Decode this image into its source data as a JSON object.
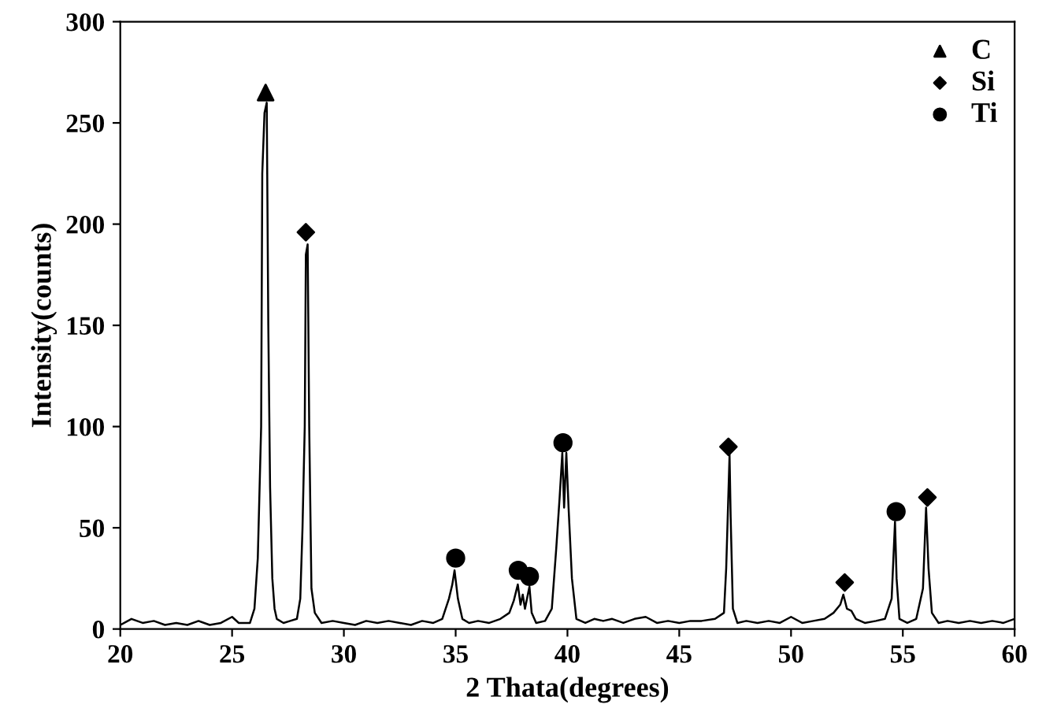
{
  "chart_data": {
    "type": "line",
    "xlabel": "2 Thata(degrees)",
    "ylabel": "Intensity(counts)",
    "xlim": [
      20,
      60
    ],
    "xticks": [
      20,
      25,
      30,
      35,
      40,
      45,
      50,
      55,
      60
    ],
    "ylim": [
      0,
      300
    ],
    "yticks": [
      0,
      50,
      100,
      150,
      200,
      250,
      300
    ],
    "grid": false,
    "legend": "top right",
    "series": [
      {
        "color": "#000000",
        "marker": "none",
        "x": [
          20,
          20.5,
          21,
          21.5,
          22,
          22.5,
          23,
          23.5,
          24,
          24.5,
          25,
          25.3,
          25.8,
          26.0,
          26.15,
          26.3,
          26.35,
          26.45,
          26.55,
          26.62,
          26.7,
          26.8,
          26.9,
          27.0,
          27.3,
          27.6,
          27.9,
          28.05,
          28.15,
          28.25,
          28.3,
          28.38,
          28.45,
          28.55,
          28.7,
          29,
          29.5,
          30,
          30.5,
          31,
          31.5,
          32,
          32.5,
          33,
          33.5,
          34,
          34.4,
          34.7,
          34.85,
          34.95,
          35.1,
          35.3,
          35.6,
          36,
          36.5,
          37,
          37.4,
          37.6,
          37.78,
          37.9,
          38.0,
          38.1,
          38.3,
          38.4,
          38.6,
          39.0,
          39.3,
          39.5,
          39.65,
          39.77,
          39.85,
          39.95,
          40.05,
          40.2,
          40.4,
          40.8,
          41.2,
          41.6,
          42,
          42.5,
          43,
          43.5,
          44,
          44.5,
          45,
          45.5,
          46,
          46.6,
          47.0,
          47.1,
          47.25,
          47.3,
          47.4,
          47.6,
          48,
          48.5,
          49,
          49.5,
          50,
          50.5,
          51,
          51.5,
          51.9,
          52.2,
          52.34,
          52.5,
          52.7,
          52.9,
          53.3,
          53.8,
          54.2,
          54.5,
          54.65,
          54.72,
          54.85,
          55.2,
          55.6,
          55.9,
          56.04,
          56.15,
          56.3,
          56.6,
          57,
          57.5,
          58,
          58.5,
          59,
          59.5,
          60
        ],
        "values": [
          2,
          5,
          3,
          4,
          2,
          3,
          2,
          4,
          2,
          3,
          6,
          3,
          3,
          10,
          35,
          100,
          225,
          255,
          260,
          150,
          70,
          25,
          10,
          5,
          3,
          4,
          5,
          15,
          50,
          100,
          185,
          190,
          100,
          20,
          8,
          3,
          4,
          3,
          2,
          4,
          3,
          4,
          3,
          2,
          4,
          3,
          5,
          15,
          22,
          29,
          15,
          5,
          3,
          4,
          3,
          5,
          8,
          14,
          22,
          12,
          17,
          10,
          21,
          8,
          3,
          4,
          10,
          40,
          65,
          87,
          60,
          87,
          60,
          25,
          5,
          3,
          5,
          4,
          5,
          3,
          5,
          6,
          3,
          4,
          3,
          4,
          4,
          5,
          8,
          30,
          86,
          55,
          10,
          3,
          4,
          3,
          4,
          3,
          6,
          3,
          4,
          5,
          8,
          12,
          17,
          10,
          9,
          5,
          3,
          4,
          5,
          15,
          53,
          25,
          5,
          3,
          5,
          20,
          60,
          30,
          8,
          3,
          4,
          3,
          4,
          3,
          4,
          3,
          5
        ]
      },
      {
        "type": "scatter",
        "name": "C",
        "color": "#000000",
        "marker": "triangle",
        "x": [
          26.5
        ],
        "values": [
          265
        ]
      },
      {
        "type": "scatter",
        "name": "Si",
        "color": "#000000",
        "marker": "diamond",
        "x": [
          28.3,
          47.2,
          52.4,
          56.1
        ],
        "values": [
          196,
          90,
          23,
          65
        ]
      },
      {
        "type": "scatter",
        "name": "Ti",
        "color": "#000000",
        "marker": "circle",
        "x": [
          35.0,
          37.8,
          38.3,
          39.8,
          54.7
        ],
        "values": [
          35,
          29,
          26,
          92,
          58
        ]
      }
    ]
  }
}
